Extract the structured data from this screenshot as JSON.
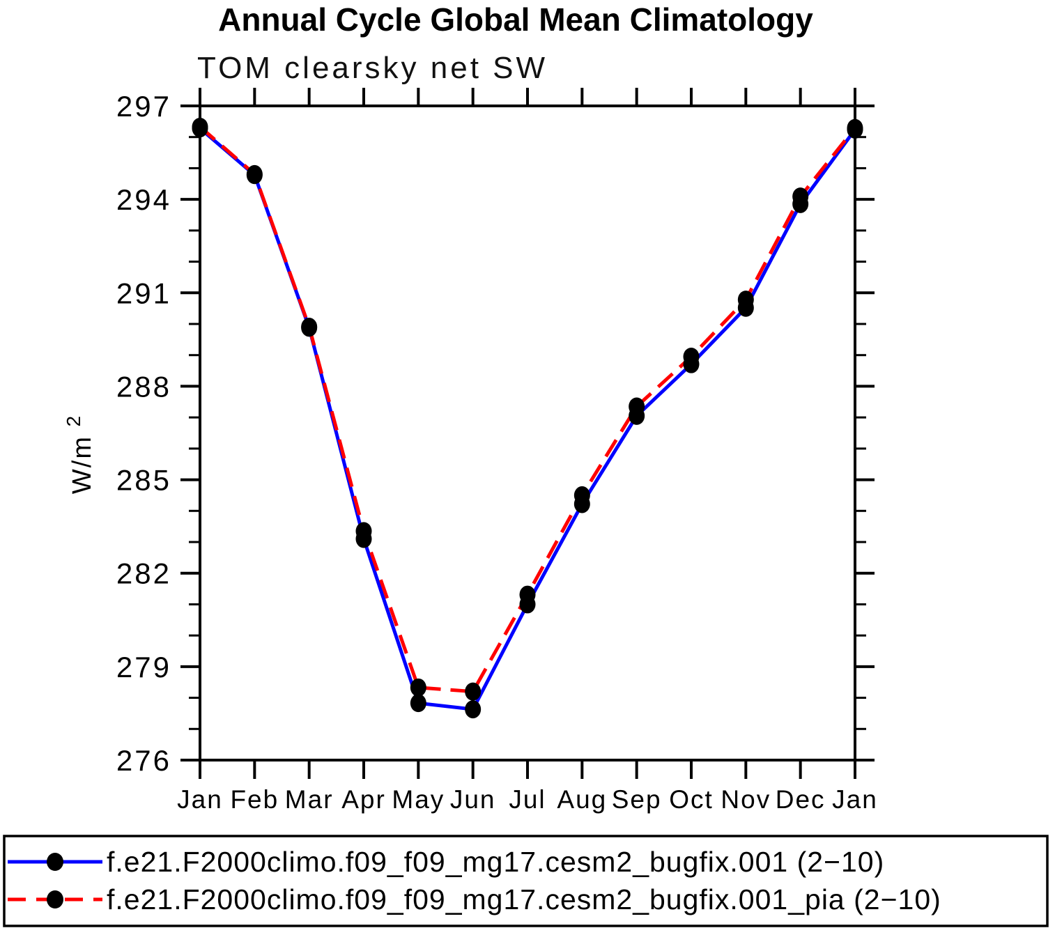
{
  "chart_data": {
    "type": "line",
    "title": "Annual Cycle Global Mean Climatology",
    "subtitle": "TOM clearsky net SW",
    "ylabel": "W/m²",
    "ylabel_parts": [
      "W/m",
      "2"
    ],
    "xlabel": "",
    "categories": [
      "Jan",
      "Feb",
      "Mar",
      "Apr",
      "May",
      "Jun",
      "Jul",
      "Aug",
      "Sep",
      "Oct",
      "Nov",
      "Dec",
      "Jan"
    ],
    "ylim": [
      276,
      297
    ],
    "y_major_ticks": [
      276,
      279,
      282,
      285,
      288,
      291,
      294,
      297
    ],
    "y_minor_step": 1,
    "grid": false,
    "legend_position": "bottom",
    "marker": {
      "shape": "filled-circle",
      "color": "#000000"
    },
    "series": [
      {
        "name": "f.e21.F2000climo.f09_f09_mg17.cesm2_bugfix.001 (2−10)",
        "color": "#0000ff",
        "line_style": "solid",
        "values": [
          296.28,
          294.78,
          289.88,
          283.1,
          277.83,
          277.63,
          281.0,
          284.22,
          287.05,
          288.71,
          290.52,
          293.85,
          296.24
        ]
      },
      {
        "name": "f.e21.F2000climo.f09_f09_mg17.cesm2_bugfix.001_pia (2−10)",
        "color": "#ff0000",
        "line_style": "dashed",
        "values": [
          296.33,
          294.81,
          289.91,
          283.35,
          278.33,
          278.2,
          281.31,
          284.5,
          287.35,
          288.95,
          290.78,
          294.09,
          296.29
        ]
      }
    ]
  }
}
